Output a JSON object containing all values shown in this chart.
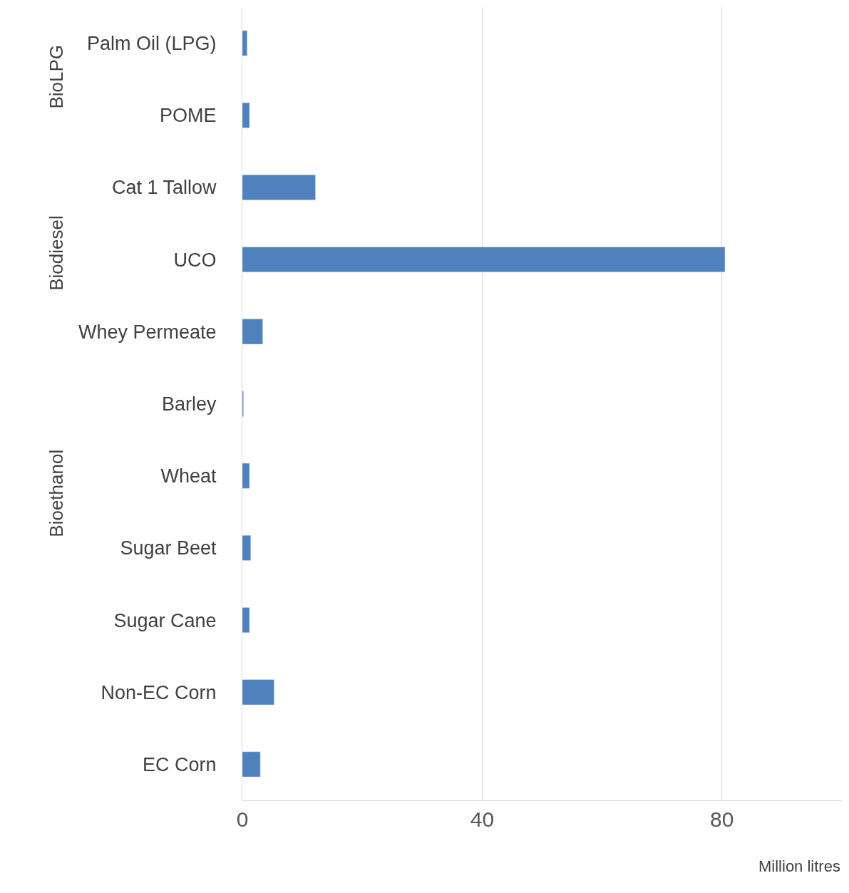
{
  "chart_data": {
    "type": "bar",
    "orientation": "horizontal",
    "categories": [
      "Palm Oil (LPG)",
      "POME",
      "Cat 1 Tallow",
      "UCO",
      "Whey Permeate",
      "Barley",
      "Wheat",
      "Sugar Beet",
      "Sugar Cane",
      "Non-EC Corn",
      "EC Corn"
    ],
    "values": [
      0.8,
      1.2,
      12.2,
      80.5,
      3.4,
      0.2,
      1.2,
      1.4,
      1.2,
      5.3,
      3.0
    ],
    "color": "#4f81bd",
    "xlim": [
      0,
      100
    ],
    "xticks": [
      0,
      40,
      80
    ],
    "xlabel": "Million litres",
    "grid": "x",
    "legend": false,
    "annotations": [
      "BioLPG",
      "Biodiesel",
      "Bioethanol"
    ]
  }
}
